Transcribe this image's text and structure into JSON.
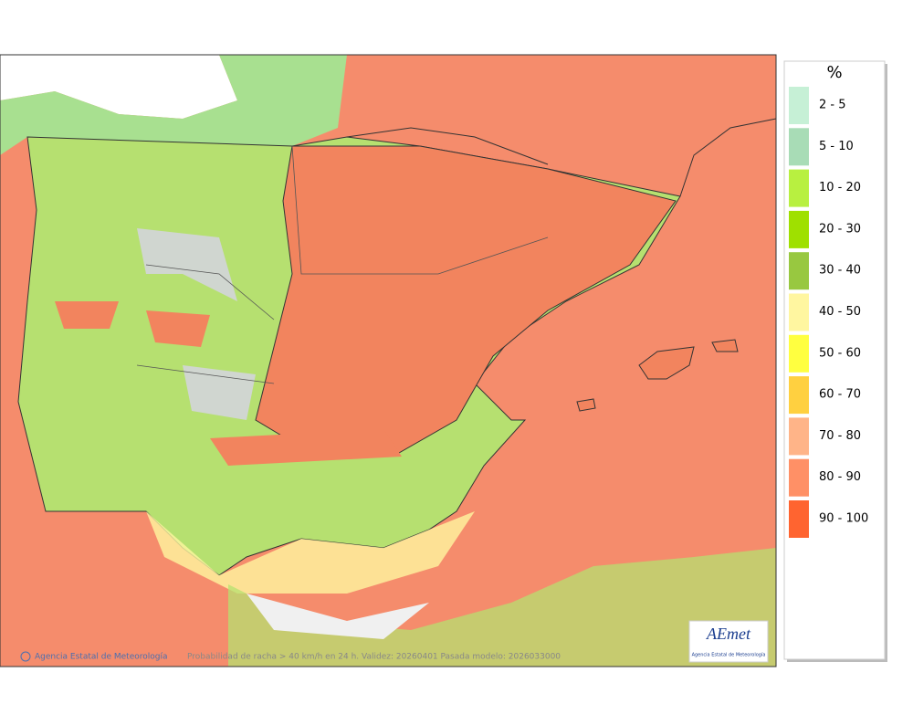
{
  "legend": {
    "title": "%",
    "items": [
      {
        "label": "2 - 5",
        "color": "#c6f0d6"
      },
      {
        "label": "5 - 10",
        "color": "#a8dcb6"
      },
      {
        "label": "10 - 20",
        "color": "#b8f040"
      },
      {
        "label": "20 - 30",
        "color": "#9fe000"
      },
      {
        "label": "30 - 40",
        "color": "#98c840"
      },
      {
        "label": "40 - 50",
        "color": "#fff6a0"
      },
      {
        "label": "50 - 60",
        "color": "#ffff40"
      },
      {
        "label": "60 - 70",
        "color": "#ffd040"
      },
      {
        "label": "70 - 80",
        "color": "#ffb488"
      },
      {
        "label": "80 - 90",
        "color": "#ff9066"
      },
      {
        "label": "90 - 100",
        "color": "#ff6430"
      }
    ]
  },
  "map": {
    "credit": "Agencia Estatal de Meteorología",
    "caption": "Probabilidad de racha > 40 km/h en 24 h. Validez: 20260401 Pasada modelo: 2026033000"
  },
  "logo": {
    "name": "AEmet",
    "subtitle": "Agencia Estatal de Meteorología"
  }
}
